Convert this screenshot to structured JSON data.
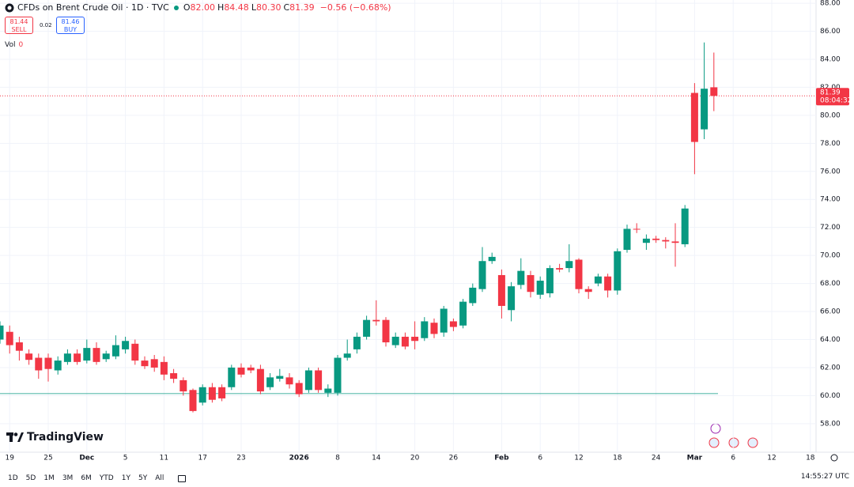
{
  "chart_data": {
    "type": "candlestick",
    "title": "CFDs on Brent Crude Oil · 1D · TVC",
    "ohlc_legend": [
      {
        "key": "O",
        "value": "82.00"
      },
      {
        "key": "H",
        "value": "84.48"
      },
      {
        "key": "L",
        "value": "80.30"
      },
      {
        "key": "C",
        "value": "81.39"
      }
    ],
    "change": "−0.56 (−0.68%)",
    "sell": {
      "price": "81.44",
      "label": "SELL"
    },
    "spread": "0.02",
    "buy": {
      "price": "81.46",
      "label": "BUY"
    },
    "volume": {
      "label": "Vol",
      "value": "0"
    },
    "categories": [
      null,
      "19",
      null,
      null,
      null,
      "25",
      null,
      null,
      null,
      "Dec",
      null,
      null,
      null,
      "5",
      null,
      null,
      null,
      "11",
      null,
      null,
      null,
      "17",
      null,
      null,
      null,
      "23",
      null,
      null,
      null,
      null,
      null,
      "2026",
      null,
      null,
      null,
      "8",
      null,
      null,
      null,
      "14",
      null,
      null,
      null,
      "20",
      null,
      null,
      null,
      "26",
      null,
      null,
      null,
      null,
      "Feb",
      null,
      null,
      null,
      "6",
      null,
      null,
      null,
      "12",
      null,
      null,
      null,
      "18",
      null,
      null,
      null,
      "24",
      null,
      null,
      null,
      "Mar",
      null,
      null,
      null,
      "6",
      null,
      null,
      null,
      "12",
      null,
      null,
      null,
      "18"
    ],
    "open": [
      64.0,
      64.55,
      63.8,
      63.0,
      62.7,
      62.7,
      61.8,
      62.4,
      63.0,
      62.5,
      63.4,
      62.6,
      62.8,
      63.3,
      63.7,
      62.5,
      62.6,
      62.4,
      61.6,
      61.1,
      60.4,
      59.5,
      60.6,
      60.6,
      60.6,
      62.0,
      62.0,
      61.9,
      60.6,
      61.2,
      61.3,
      60.9,
      60.4,
      61.8,
      60.2,
      60.2,
      62.7,
      63.3,
      64.2,
      65.4,
      65.4,
      63.6,
      64.2,
      64.2,
      64.1,
      65.2,
      64.5,
      65.3,
      65.0,
      66.6,
      67.6,
      69.6,
      68.6,
      66.1,
      67.9,
      68.6,
      67.2,
      67.3,
      69.1,
      69.1,
      69.7,
      67.6,
      68.0,
      68.5,
      67.5,
      70.4,
      71.9,
      70.9,
      71.2,
      71.1,
      71.0,
      70.8,
      81.6,
      79.0,
      82.0,
      null,
      null,
      null,
      null,
      null,
      null,
      null,
      null,
      null,
      null
    ],
    "high": [
      65.3,
      65.0,
      64.2,
      63.3,
      63.0,
      63.0,
      62.8,
      63.3,
      63.3,
      64.0,
      63.8,
      63.2,
      64.3,
      64.2,
      64.0,
      62.8,
      62.9,
      62.8,
      61.9,
      61.3,
      60.5,
      60.8,
      60.9,
      60.8,
      62.2,
      62.3,
      62.2,
      62.2,
      61.6,
      61.9,
      61.6,
      61.1,
      62.0,
      62.0,
      60.8,
      62.9,
      64.0,
      64.5,
      65.7,
      66.8,
      65.6,
      64.5,
      64.5,
      65.3,
      65.6,
      65.5,
      66.4,
      65.5,
      66.9,
      68.0,
      70.6,
      70.2,
      69.0,
      68.1,
      69.8,
      68.9,
      68.5,
      69.3,
      69.4,
      70.8,
      69.8,
      67.8,
      68.7,
      68.7,
      70.5,
      72.2,
      72.3,
      71.5,
      71.4,
      71.3,
      72.3,
      73.6,
      82.3,
      85.2,
      84.48,
      null,
      null,
      null,
      null,
      null,
      null,
      null,
      null,
      null,
      null
    ],
    "low": [
      63.7,
      63.0,
      62.5,
      62.2,
      61.2,
      61.0,
      61.5,
      62.2,
      62.2,
      62.3,
      62.2,
      62.4,
      62.6,
      63.0,
      62.2,
      61.9,
      61.7,
      61.1,
      60.9,
      60.0,
      58.8,
      59.3,
      59.5,
      59.6,
      60.4,
      61.3,
      61.6,
      60.1,
      60.4,
      61.0,
      60.5,
      59.9,
      60.2,
      60.2,
      59.9,
      60.0,
      62.5,
      63.0,
      64.0,
      65.0,
      63.5,
      63.4,
      63.3,
      63.3,
      63.9,
      64.1,
      64.2,
      64.6,
      64.8,
      66.4,
      67.4,
      69.4,
      65.5,
      65.3,
      67.6,
      67.0,
      66.9,
      67.0,
      68.8,
      68.8,
      67.3,
      66.9,
      67.8,
      67.0,
      67.2,
      70.2,
      71.6,
      70.4,
      70.9,
      70.5,
      69.2,
      70.6,
      75.8,
      78.3,
      80.3,
      null,
      null,
      null,
      null,
      null,
      null,
      null,
      null,
      null,
      null
    ],
    "close": [
      65.0,
      63.6,
      63.2,
      62.55,
      61.8,
      61.9,
      62.5,
      63.0,
      62.4,
      63.4,
      62.4,
      63.0,
      63.6,
      63.9,
      62.5,
      62.1,
      62.0,
      61.5,
      61.2,
      60.3,
      58.9,
      60.6,
      59.7,
      59.8,
      62.0,
      61.5,
      61.8,
      60.3,
      61.3,
      61.4,
      60.8,
      60.1,
      61.8,
      60.4,
      60.5,
      62.7,
      63.0,
      64.2,
      65.4,
      65.3,
      63.8,
      64.2,
      63.5,
      63.9,
      65.3,
      64.4,
      66.2,
      64.9,
      66.7,
      67.7,
      69.6,
      69.9,
      66.4,
      67.8,
      68.9,
      67.4,
      68.2,
      69.1,
      69.0,
      69.6,
      67.6,
      67.4,
      68.5,
      67.5,
      70.3,
      71.9,
      71.85,
      71.2,
      71.1,
      71.0,
      70.9,
      73.35,
      78.1,
      81.9,
      81.39,
      null,
      null,
      null,
      null,
      null,
      null,
      null,
      null,
      null,
      null
    ],
    "up_color": "#089981",
    "down_color": "#f23645",
    "ylim": [
      55.96,
      88.23
    ],
    "yticks": [
      {
        "value": 58,
        "label": "58.00"
      },
      {
        "value": 60,
        "label": "60.00"
      },
      {
        "value": 62,
        "label": "62.00"
      },
      {
        "value": 64,
        "label": "64.00"
      },
      {
        "value": 66,
        "label": "66.00"
      },
      {
        "value": 68,
        "label": "68.00"
      },
      {
        "value": 70,
        "label": "70.00"
      },
      {
        "value": 72,
        "label": "72.00"
      },
      {
        "value": 74,
        "label": "74.00"
      },
      {
        "value": 76,
        "label": "76.00"
      },
      {
        "value": 78,
        "label": "78.00"
      },
      {
        "value": 80,
        "label": "80.00"
      },
      {
        "value": 82,
        "label": "82.00"
      },
      {
        "value": 84,
        "label": "84.00"
      },
      {
        "value": 86,
        "label": "86.00"
      },
      {
        "value": 88,
        "label": "88.00"
      }
    ],
    "grid": true,
    "last_price": {
      "value": 81.39,
      "label": "81.39",
      "countdown": "08:04:32",
      "color": "#f23645"
    },
    "price_line": {
      "value": 60.14,
      "color": "#089981"
    }
  },
  "toolbar": {
    "ranges": [
      "1D",
      "5D",
      "1M",
      "3M",
      "6M",
      "YTD",
      "1Y",
      "5Y",
      "All"
    ],
    "clock": "14:55:27 UTC"
  },
  "logo": "TradingView"
}
